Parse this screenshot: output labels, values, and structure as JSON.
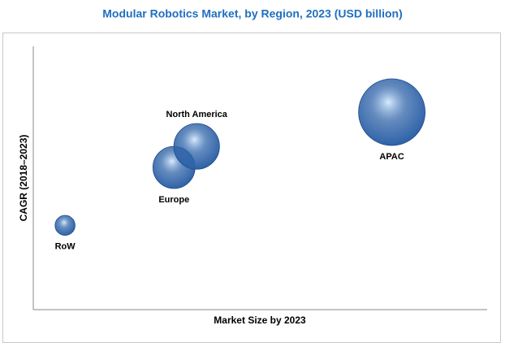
{
  "chart_data": {
    "type": "bubble",
    "title": "Modular Robotics Market, by Region, 2023 (USD billion)",
    "x_label": "Market Size by 2023",
    "y_label": "CAGR (2018–2023)",
    "categories": [
      "RoW",
      "Europe",
      "North America",
      "APAC"
    ],
    "x": [
      7,
      31,
      36,
      79
    ],
    "values": [
      32,
      54,
      62,
      75
    ],
    "sizes": [
      9,
      40,
      47,
      100
    ],
    "color": "#2f63a8",
    "xlim": [
      0,
      100
    ],
    "ylim": [
      0,
      100
    ]
  }
}
